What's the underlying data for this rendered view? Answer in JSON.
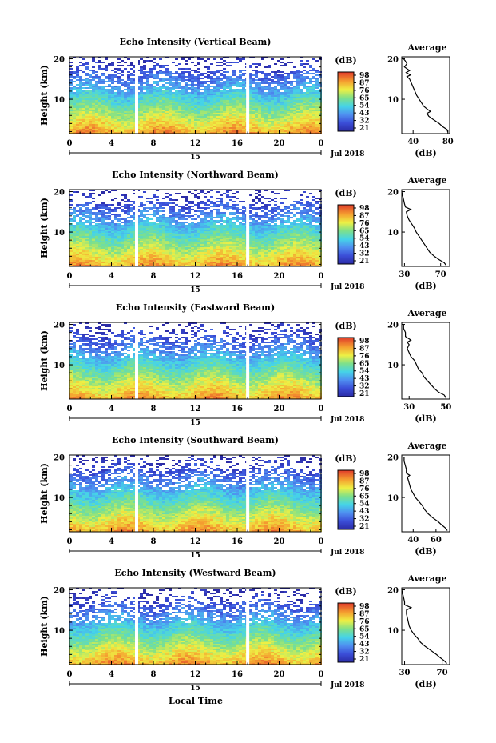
{
  "figure": {
    "xlabel": "Local Time",
    "date_label": "Jul 2018",
    "day_label": "15",
    "height_label": "Height (km)",
    "avg_title": "Average",
    "unit_label": "(dB)"
  },
  "chart_data": [
    {
      "type": "heatmap",
      "title": "Echo Intensity (Vertical Beam)",
      "x_ticks": [
        "0",
        "4",
        "8",
        "12",
        "16",
        "20",
        "0"
      ],
      "y_ticks": [
        "20",
        "10"
      ],
      "xlim": [
        0,
        24
      ],
      "ylim": [
        1.5,
        20.5
      ],
      "gaps_hours": [
        6.4,
        17.0
      ],
      "colorbar": [
        "98",
        "87",
        "76",
        "65",
        "54",
        "43",
        "32",
        "21"
      ],
      "avg_profile": {
        "x_ticks": [
          "40",
          "80"
        ],
        "xlim": [
          27,
          82
        ],
        "points": [
          [
            80,
            1.8
          ],
          [
            79,
            2.5
          ],
          [
            74,
            3.2
          ],
          [
            70,
            4.0
          ],
          [
            63,
            5.0
          ],
          [
            58,
            5.8
          ],
          [
            56,
            6.5
          ],
          [
            60,
            7.0
          ],
          [
            56,
            7.6
          ],
          [
            52,
            8.3
          ],
          [
            50,
            9.0
          ],
          [
            47,
            10.0
          ],
          [
            44,
            11.0
          ],
          [
            42,
            12.0
          ],
          [
            40,
            13.0
          ],
          [
            38,
            14.0
          ],
          [
            36,
            15.0
          ],
          [
            33,
            15.6
          ],
          [
            37,
            16.0
          ],
          [
            32,
            16.6
          ],
          [
            36,
            17.1
          ],
          [
            30,
            18.0
          ],
          [
            33,
            18.8
          ],
          [
            31,
            19.5
          ],
          [
            29,
            20.0
          ]
        ]
      }
    },
    {
      "type": "heatmap",
      "title": "Echo Intensity (Northward Beam)",
      "x_ticks": [
        "0",
        "4",
        "8",
        "12",
        "16",
        "20",
        "0"
      ],
      "y_ticks": [
        "20",
        "10"
      ],
      "xlim": [
        0,
        24
      ],
      "ylim": [
        1.5,
        20.5
      ],
      "gaps_hours": [
        6.4,
        17.0
      ],
      "colorbar": [
        "98",
        "87",
        "76",
        "65",
        "54",
        "43",
        "32",
        "21"
      ],
      "avg_profile": {
        "x_ticks": [
          "30",
          "70"
        ],
        "xlim": [
          27,
          80
        ],
        "points": [
          [
            76,
            1.8
          ],
          [
            74,
            2.4
          ],
          [
            68,
            3.2
          ],
          [
            63,
            4.0
          ],
          [
            58,
            5.0
          ],
          [
            55,
            6.0
          ],
          [
            52,
            7.0
          ],
          [
            49,
            8.0
          ],
          [
            46,
            9.0
          ],
          [
            43,
            10.0
          ],
          [
            41,
            11.0
          ],
          [
            38,
            12.0
          ],
          [
            35,
            13.0
          ],
          [
            33,
            14.0
          ],
          [
            32,
            15.0
          ],
          [
            37,
            15.6
          ],
          [
            31,
            16.2
          ],
          [
            30,
            17.0
          ],
          [
            29,
            18.0
          ],
          [
            28,
            19.0
          ],
          [
            27,
            20.0
          ]
        ]
      }
    },
    {
      "type": "heatmap",
      "title": "Echo Intensity (Eastward Beam)",
      "x_ticks": [
        "0",
        "4",
        "8",
        "12",
        "16",
        "20",
        "0"
      ],
      "y_ticks": [
        "20",
        "10"
      ],
      "xlim": [
        0,
        24
      ],
      "ylim": [
        1.5,
        20.5
      ],
      "gaps_hours": [
        6.4,
        17.0
      ],
      "colorbar": [
        "98",
        "87",
        "76",
        "65",
        "54",
        "43",
        "32",
        "21"
      ],
      "avg_profile": {
        "x_ticks": [
          "30",
          "50"
        ],
        "xlim": [
          26,
          52
        ],
        "points": [
          [
            50,
            1.8
          ],
          [
            49,
            2.5
          ],
          [
            46,
            3.2
          ],
          [
            44,
            4.0
          ],
          [
            42,
            5.0
          ],
          [
            40,
            6.0
          ],
          [
            38,
            7.0
          ],
          [
            37,
            8.0
          ],
          [
            35,
            9.0
          ],
          [
            34,
            10.0
          ],
          [
            33,
            11.0
          ],
          [
            31,
            12.0
          ],
          [
            30,
            13.0
          ],
          [
            29,
            14.0
          ],
          [
            30,
            15.0
          ],
          [
            29,
            15.6
          ],
          [
            31,
            16.1
          ],
          [
            28,
            17.0
          ],
          [
            28,
            18.0
          ],
          [
            27,
            19.0
          ],
          [
            27,
            20.0
          ]
        ]
      }
    },
    {
      "type": "heatmap",
      "title": "Echo Intensity (Southward Beam)",
      "x_ticks": [
        "0",
        "4",
        "8",
        "12",
        "16",
        "20",
        "0"
      ],
      "y_ticks": [
        "20",
        "10"
      ],
      "xlim": [
        0,
        24
      ],
      "ylim": [
        1.5,
        20.5
      ],
      "gaps_hours": [
        6.4,
        17.0
      ],
      "colorbar": [
        "98",
        "87",
        "76",
        "65",
        "54",
        "43",
        "32",
        "21"
      ],
      "avg_profile": {
        "x_ticks": [
          "40",
          "60"
        ],
        "xlim": [
          30,
          72
        ],
        "points": [
          [
            70,
            1.8
          ],
          [
            68,
            2.5
          ],
          [
            65,
            3.2
          ],
          [
            62,
            4.0
          ],
          [
            57,
            5.0
          ],
          [
            53,
            6.0
          ],
          [
            50,
            7.0
          ],
          [
            48,
            8.0
          ],
          [
            45,
            9.0
          ],
          [
            42,
            10.0
          ],
          [
            40,
            11.0
          ],
          [
            38,
            12.0
          ],
          [
            37,
            13.0
          ],
          [
            36,
            14.0
          ],
          [
            35,
            15.0
          ],
          [
            37,
            15.5
          ],
          [
            34,
            16.0
          ],
          [
            34,
            17.0
          ],
          [
            33,
            18.0
          ],
          [
            32,
            19.0
          ],
          [
            32,
            20.0
          ]
        ]
      }
    },
    {
      "type": "heatmap",
      "title": "Echo Intensity (Westward Beam)",
      "x_ticks": [
        "0",
        "4",
        "8",
        "12",
        "16",
        "20",
        "0"
      ],
      "y_ticks": [
        "20",
        "10"
      ],
      "xlim": [
        0,
        24
      ],
      "ylim": [
        1.5,
        20.5
      ],
      "gaps_hours": [
        6.4,
        17.0
      ],
      "colorbar": [
        "98",
        "87",
        "76",
        "65",
        "54",
        "43",
        "32",
        "21"
      ],
      "avg_profile": {
        "x_ticks": [
          "30",
          "70"
        ],
        "xlim": [
          27,
          78
        ],
        "points": [
          [
            75,
            1.8
          ],
          [
            72,
            2.5
          ],
          [
            68,
            3.2
          ],
          [
            64,
            4.0
          ],
          [
            58,
            5.0
          ],
          [
            52,
            6.0
          ],
          [
            47,
            7.0
          ],
          [
            44,
            8.0
          ],
          [
            40,
            9.0
          ],
          [
            37,
            10.0
          ],
          [
            35,
            11.0
          ],
          [
            34,
            12.0
          ],
          [
            33,
            13.0
          ],
          [
            32,
            14.0
          ],
          [
            32,
            15.0
          ],
          [
            37,
            15.6
          ],
          [
            30,
            16.3
          ],
          [
            30,
            17.0
          ],
          [
            29,
            18.0
          ],
          [
            28,
            19.0
          ],
          [
            27,
            20.0
          ]
        ]
      }
    }
  ]
}
